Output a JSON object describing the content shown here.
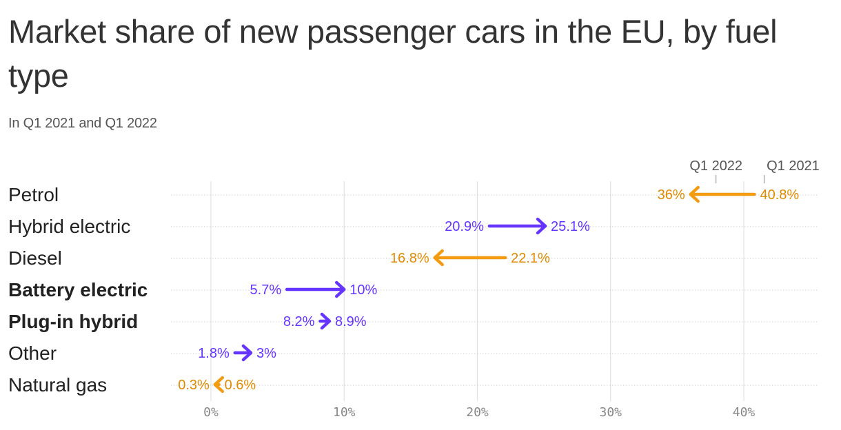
{
  "title": "Market share of new passenger cars in the EU, by fuel type",
  "subtitle": "In Q1 2021 and Q1 2022",
  "chart_data": {
    "type": "arrow",
    "title": "Market share of new passenger cars in the EU, by fuel type",
    "subtitle": "In Q1 2021 and Q1 2022",
    "xlim": [
      0,
      45
    ],
    "x_ticks": [
      0,
      10,
      20,
      30,
      40
    ],
    "x_tick_labels": [
      "0%",
      "10%",
      "20%",
      "30%",
      "40%"
    ],
    "legend": {
      "from_label": "Q1 2021",
      "to_label": "Q1 2022"
    },
    "colors": {
      "increase": "#6534ff",
      "decrease": "#f39c12",
      "decrease_text": "#e08a00"
    },
    "categories": [
      {
        "name": "Petrol",
        "from": 40.8,
        "to": 36,
        "from_label": "40.8%",
        "to_label": "36%",
        "bold": false
      },
      {
        "name": "Hybrid electric",
        "from": 20.9,
        "to": 25.1,
        "from_label": "20.9%",
        "to_label": "25.1%",
        "bold": false
      },
      {
        "name": "Diesel",
        "from": 22.1,
        "to": 16.8,
        "from_label": "22.1%",
        "to_label": "16.8%",
        "bold": false
      },
      {
        "name": "Battery electric",
        "from": 5.7,
        "to": 10,
        "from_label": "5.7%",
        "to_label": "10%",
        "bold": true
      },
      {
        "name": "Plug-in hybrid",
        "from": 8.2,
        "to": 8.9,
        "from_label": "8.2%",
        "to_label": "8.9%",
        "bold": true
      },
      {
        "name": "Other",
        "from": 1.8,
        "to": 3,
        "from_label": "1.8%",
        "to_label": "3%",
        "bold": false
      },
      {
        "name": "Natural gas",
        "from": 0.6,
        "to": 0.3,
        "from_label": "0.6%",
        "to_label": "0.3%",
        "bold": false
      }
    ]
  }
}
